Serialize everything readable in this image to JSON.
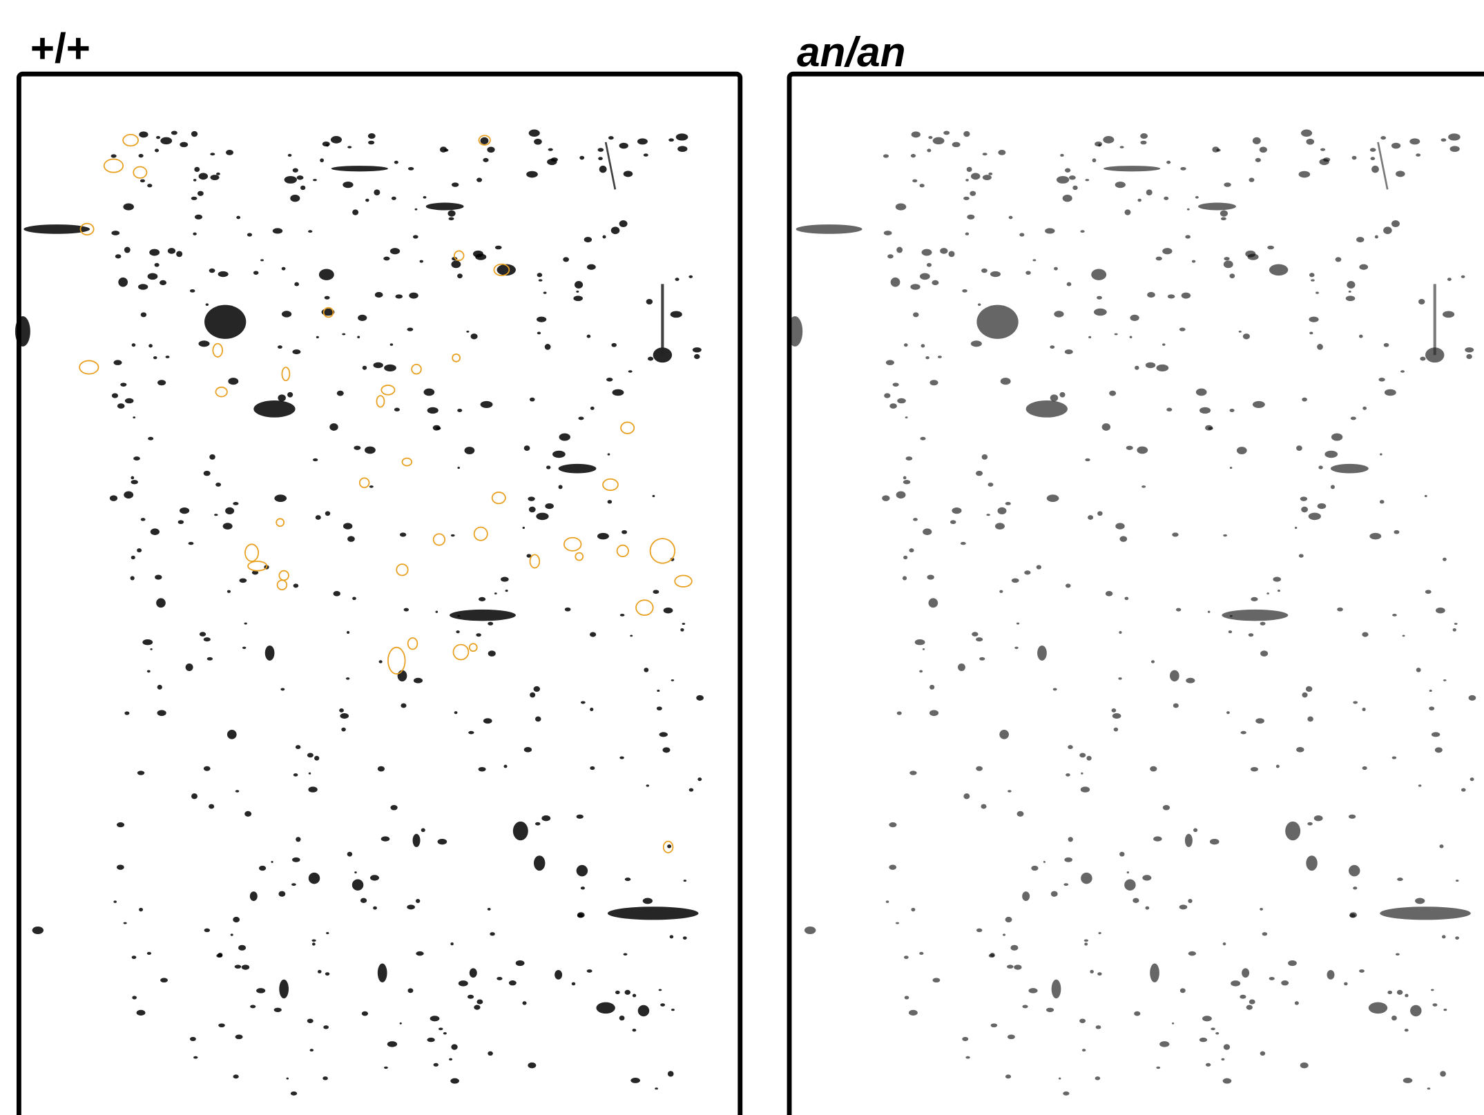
{
  "panels": [
    {
      "label": "+/+"
    },
    {
      "label": "an/an"
    }
  ]
}
